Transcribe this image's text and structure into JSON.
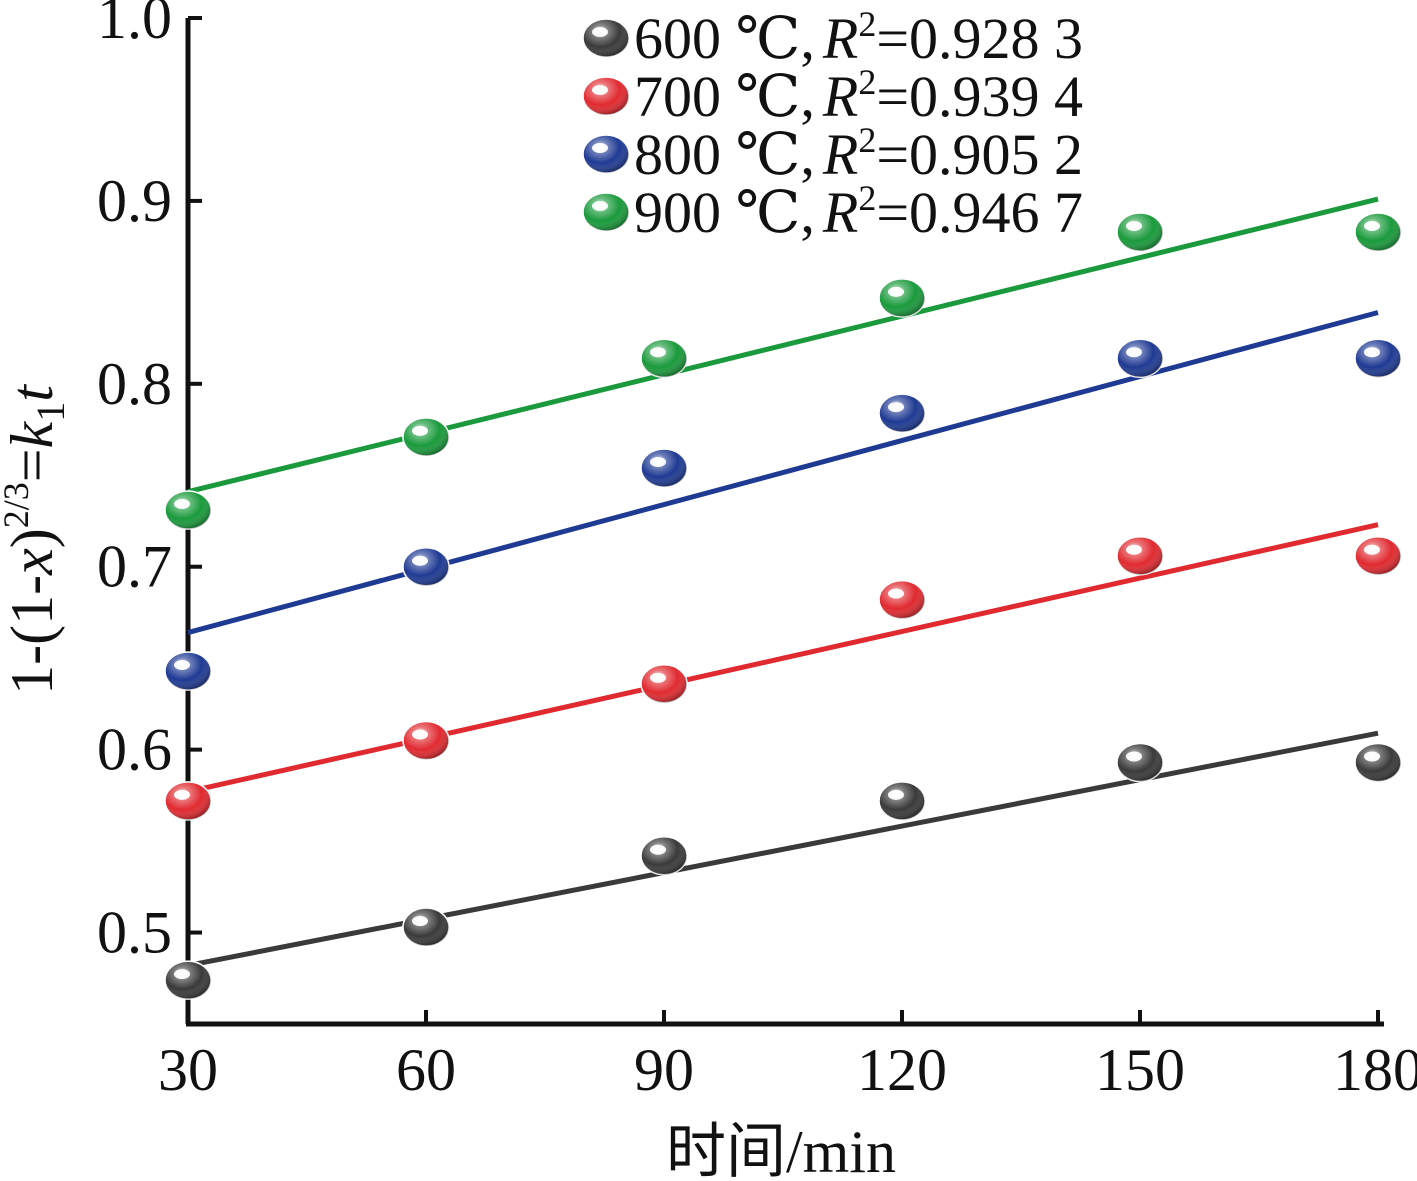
{
  "chart_data": {
    "type": "scatter",
    "xlabel": "时间/min",
    "ylabel": {
      "prefix": "1-(1-",
      "var": "x",
      "mid": ")",
      "exp": "2/3",
      "eq": "=",
      "k": "k",
      "sub": "1",
      "t": "t"
    },
    "xlim": [
      29,
      182
    ],
    "ylim": [
      0.45,
      1.0
    ],
    "xticks": [
      30,
      60,
      90,
      120,
      150,
      180
    ],
    "yticks": [
      0.5,
      0.6,
      0.7,
      0.8,
      0.9,
      1.0
    ],
    "ytick_labels": [
      "0.5",
      "0.6",
      "0.7",
      "0.8",
      "0.9",
      "1.0"
    ],
    "grid": false,
    "legend_position": "top-right",
    "x": [
      30,
      60,
      90,
      120,
      150,
      180
    ],
    "series": [
      {
        "name": "600 ℃",
        "temp": "600 ℃,",
        "r2_label": "R",
        "r2_sup": "2",
        "r2_value": "=0.928 3",
        "color": "#3a3a3a",
        "values": [
          0.474,
          0.503,
          0.542,
          0.572,
          0.593,
          0.593
        ],
        "fit": [
          0.482,
          0.609
        ]
      },
      {
        "name": "700 ℃",
        "temp": "700 ℃,",
        "r2_label": "R",
        "r2_sup": "2",
        "r2_value": "=0.939 4",
        "color": "#e02a30",
        "values": [
          0.572,
          0.605,
          0.636,
          0.682,
          0.706,
          0.706
        ],
        "fit": [
          0.577,
          0.723
        ]
      },
      {
        "name": "800 ℃",
        "temp": "800 ℃,",
        "r2_label": "R",
        "r2_sup": "2",
        "r2_value": "=0.905 2",
        "color": "#1f3a93",
        "values": [
          0.643,
          0.7,
          0.754,
          0.784,
          0.814,
          0.814
        ],
        "fit": [
          0.664,
          0.839
        ]
      },
      {
        "name": "900 ℃",
        "temp": "900 ℃,",
        "r2_label": "R",
        "r2_sup": "2",
        "r2_value": "=0.946 7",
        "color": "#1a9a3c",
        "values": [
          0.731,
          0.771,
          0.814,
          0.847,
          0.883,
          0.883
        ],
        "fit": [
          0.741,
          0.901
        ]
      }
    ]
  }
}
